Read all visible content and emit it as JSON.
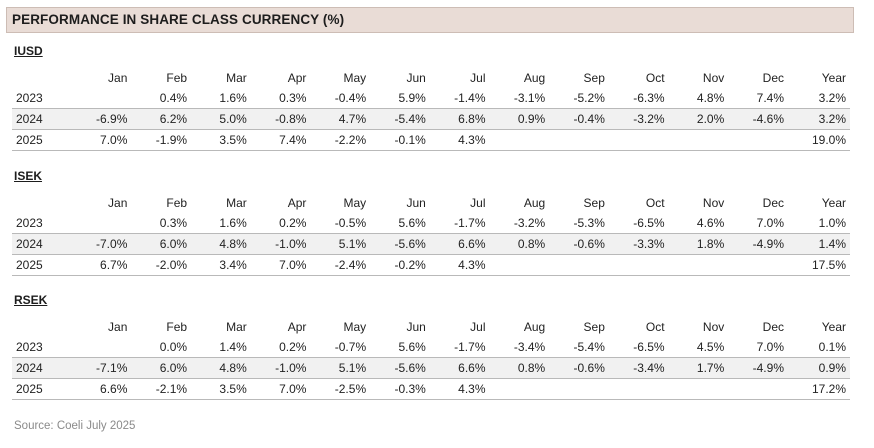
{
  "title": "PERFORMANCE IN SHARE CLASS CURRENCY (%)",
  "columns": [
    "",
    "Jan",
    "Feb",
    "Mar",
    "Apr",
    "May",
    "Jun",
    "Jul",
    "Aug",
    "Sep",
    "Oct",
    "Nov",
    "Dec",
    "Year"
  ],
  "share_classes": [
    {
      "name": "IUSD",
      "rows": [
        [
          "2023",
          "",
          "0.4%",
          "1.6%",
          "0.3%",
          "-0.4%",
          "5.9%",
          "-1.4%",
          "-3.1%",
          "-5.2%",
          "-6.3%",
          "4.8%",
          "7.4%",
          "3.2%"
        ],
        [
          "2024",
          "-6.9%",
          "6.2%",
          "5.0%",
          "-0.8%",
          "4.7%",
          "-5.4%",
          "6.8%",
          "0.9%",
          "-0.4%",
          "-3.2%",
          "2.0%",
          "-4.6%",
          "3.2%"
        ],
        [
          "2025",
          "7.0%",
          "-1.9%",
          "3.5%",
          "7.4%",
          "-2.2%",
          "-0.1%",
          "4.3%",
          "",
          "",
          "",
          "",
          "",
          "19.0%"
        ]
      ]
    },
    {
      "name": "ISEK",
      "rows": [
        [
          "2023",
          "",
          "0.3%",
          "1.6%",
          "0.2%",
          "-0.5%",
          "5.6%",
          "-1.7%",
          "-3.2%",
          "-5.3%",
          "-6.5%",
          "4.6%",
          "7.0%",
          "1.0%"
        ],
        [
          "2024",
          "-7.0%",
          "6.0%",
          "4.8%",
          "-1.0%",
          "5.1%",
          "-5.6%",
          "6.6%",
          "0.8%",
          "-0.6%",
          "-3.3%",
          "1.8%",
          "-4.9%",
          "1.4%"
        ],
        [
          "2025",
          "6.7%",
          "-2.0%",
          "3.4%",
          "7.0%",
          "-2.4%",
          "-0.2%",
          "4.3%",
          "",
          "",
          "",
          "",
          "",
          "17.5%"
        ]
      ]
    },
    {
      "name": "RSEK",
      "rows": [
        [
          "2023",
          "",
          "0.0%",
          "1.4%",
          "0.2%",
          "-0.7%",
          "5.6%",
          "-1.7%",
          "-3.4%",
          "-5.4%",
          "-6.5%",
          "4.5%",
          "7.0%",
          "0.1%"
        ],
        [
          "2024",
          "-7.1%",
          "6.0%",
          "4.8%",
          "-1.0%",
          "5.1%",
          "-5.6%",
          "6.6%",
          "0.8%",
          "-0.6%",
          "-3.4%",
          "1.7%",
          "-4.9%",
          "0.9%"
        ],
        [
          "2025",
          "6.6%",
          "-2.1%",
          "3.5%",
          "7.0%",
          "-2.5%",
          "-0.3%",
          "4.3%",
          "",
          "",
          "",
          "",
          "",
          "17.2%"
        ]
      ]
    }
  ],
  "source": "Source:  Coeli July 2025"
}
